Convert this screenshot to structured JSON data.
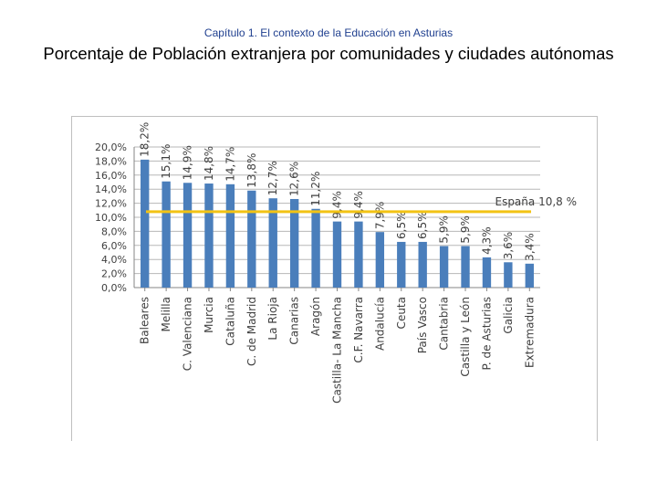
{
  "header": {
    "subtitle": "Capítulo 1. El contexto de la Educación en Asturias",
    "title": "Porcentaje de Población extranjera por comunidades y ciudades autónomas"
  },
  "chart_data": {
    "type": "bar",
    "title": "Porcentaje de Población extranjera por comunidades y ciudades autónomas",
    "xlabel": "",
    "ylabel": "",
    "ylim": [
      0,
      20
    ],
    "yticks": [
      "0,0%",
      "2,0%",
      "4,0%",
      "6,0%",
      "8,0%",
      "10,0%",
      "12,0%",
      "14,0%",
      "16,0%",
      "18,0%",
      "20,0%"
    ],
    "categories": [
      "Baleares",
      "Melilla",
      "C. Valenciana",
      "Murcia",
      "Cataluña",
      "C. de Madrid",
      "La Rioja",
      "Canarias",
      "Aragón",
      "Castilla- La Mancha",
      "C.F. Navarra",
      "Andalucía",
      "Ceuta",
      "País Vasco",
      "Cantabria",
      "Castilla y León",
      "P. de Asturias",
      "Galicia",
      "Extremadura"
    ],
    "values": [
      18.2,
      15.1,
      14.9,
      14.8,
      14.7,
      13.8,
      12.7,
      12.6,
      11.2,
      9.4,
      9.4,
      7.9,
      6.5,
      6.5,
      5.9,
      5.9,
      4.3,
      3.6,
      3.4
    ],
    "value_labels": [
      "18,2%",
      "15,1%",
      "14,9%",
      "14,8%",
      "14,7%",
      "13,8%",
      "12,7%",
      "12,6%",
      "11,2%",
      "9,4%",
      "9,4%",
      "7,9%",
      "6,5%",
      "6,5%",
      "5,9%",
      "5,9%",
      "4,3%",
      "3,6%",
      "3,4%"
    ],
    "reference_line": {
      "label": "España 10,8 %",
      "value": 10.8
    },
    "grid": true,
    "colors": {
      "bar": "#4a7ebb",
      "reference": "#f2c314",
      "grid": "#b7b7b7",
      "text": "#404040"
    }
  }
}
